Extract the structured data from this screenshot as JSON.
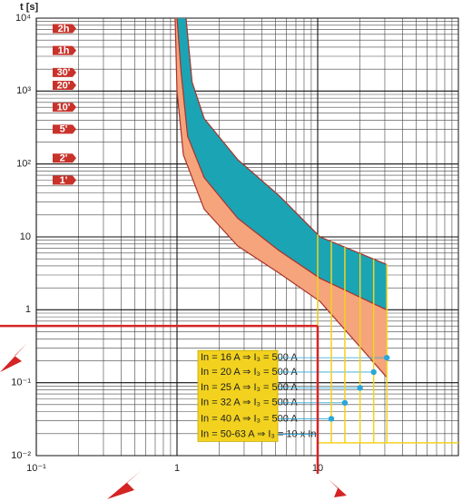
{
  "chart_data": {
    "type": "band",
    "y_label": "t [s]",
    "xscale": "log",
    "yscale": "log",
    "grid": true,
    "xlim": [
      0.1,
      100
    ],
    "ylim": [
      0.01,
      10000
    ],
    "xticks": [
      {
        "value": 0.1,
        "label": "10⁻¹"
      },
      1,
      10
    ],
    "yticks": [
      {
        "value": 10000,
        "label": "10⁴"
      },
      {
        "value": 1000,
        "label": "10³"
      },
      {
        "value": 100,
        "label": "10²"
      },
      10,
      1,
      {
        "value": 0.1,
        "label": "10⁻¹"
      },
      {
        "value": 0.01,
        "label": "10⁻²"
      }
    ],
    "time_marks": [
      {
        "value": 7200,
        "label": "2h"
      },
      {
        "value": 3600,
        "label": "1h"
      },
      {
        "value": 1800,
        "label": "30'"
      },
      {
        "value": 1200,
        "label": "20'"
      },
      {
        "value": 600,
        "label": "10'"
      },
      {
        "value": 300,
        "label": "5'"
      },
      {
        "value": 120,
        "label": "2'"
      },
      {
        "value": 60,
        "label": "1'"
      }
    ],
    "curves": [
      {
        "color": "#a8322a",
        "x": [
          1.16,
          1.28,
          1.56,
          2.7,
          5.3,
          10.4,
          30.8
        ],
        "y": [
          10000,
          1330,
          420,
          115,
          37,
          10,
          4.2
        ]
      },
      {
        "color": "#a8322a",
        "x": [
          1.0,
          1.07,
          1.19,
          1.56,
          2.7,
          5.3,
          10.4,
          30.8
        ],
        "y": [
          10000,
          1780,
          240,
          65,
          18,
          6.5,
          2.7,
          1.0
        ]
      },
      {
        "color": "#a8322a",
        "x": [
          0.97,
          1.0,
          1.11,
          1.56,
          2.7,
          5.3,
          10.4,
          30.8
        ],
        "y": [
          10000,
          1000,
          133,
          24,
          7.5,
          3.2,
          1.3,
          0.12
        ]
      }
    ],
    "band_colors": [
      "#1ba4b4",
      "#f5a47c"
    ],
    "reference": {
      "x": 10,
      "y": 0.6,
      "color": "#d42424"
    },
    "trip": {
      "color": "#f2d21e",
      "dot_color": "#2aa6d8",
      "floor": 0.015,
      "labels": [
        "In = 16 A ⇒ I₃ = 500 A",
        "In = 20 A ⇒ I₃ = 500 A",
        "In = 25 A ⇒ I₃ = 500 A",
        "In = 32 A ⇒ I₃ = 500 A",
        "In = 40 A ⇒ I₃ = 500 A",
        "In = 50-63 A ⇒ I₃ = 10 x In"
      ],
      "x": [
        31,
        25,
        20,
        15.6,
        12.5,
        10
      ],
      "y": [
        0.22,
        0.14,
        0.085,
        0.053,
        0.032,
        null
      ]
    }
  }
}
